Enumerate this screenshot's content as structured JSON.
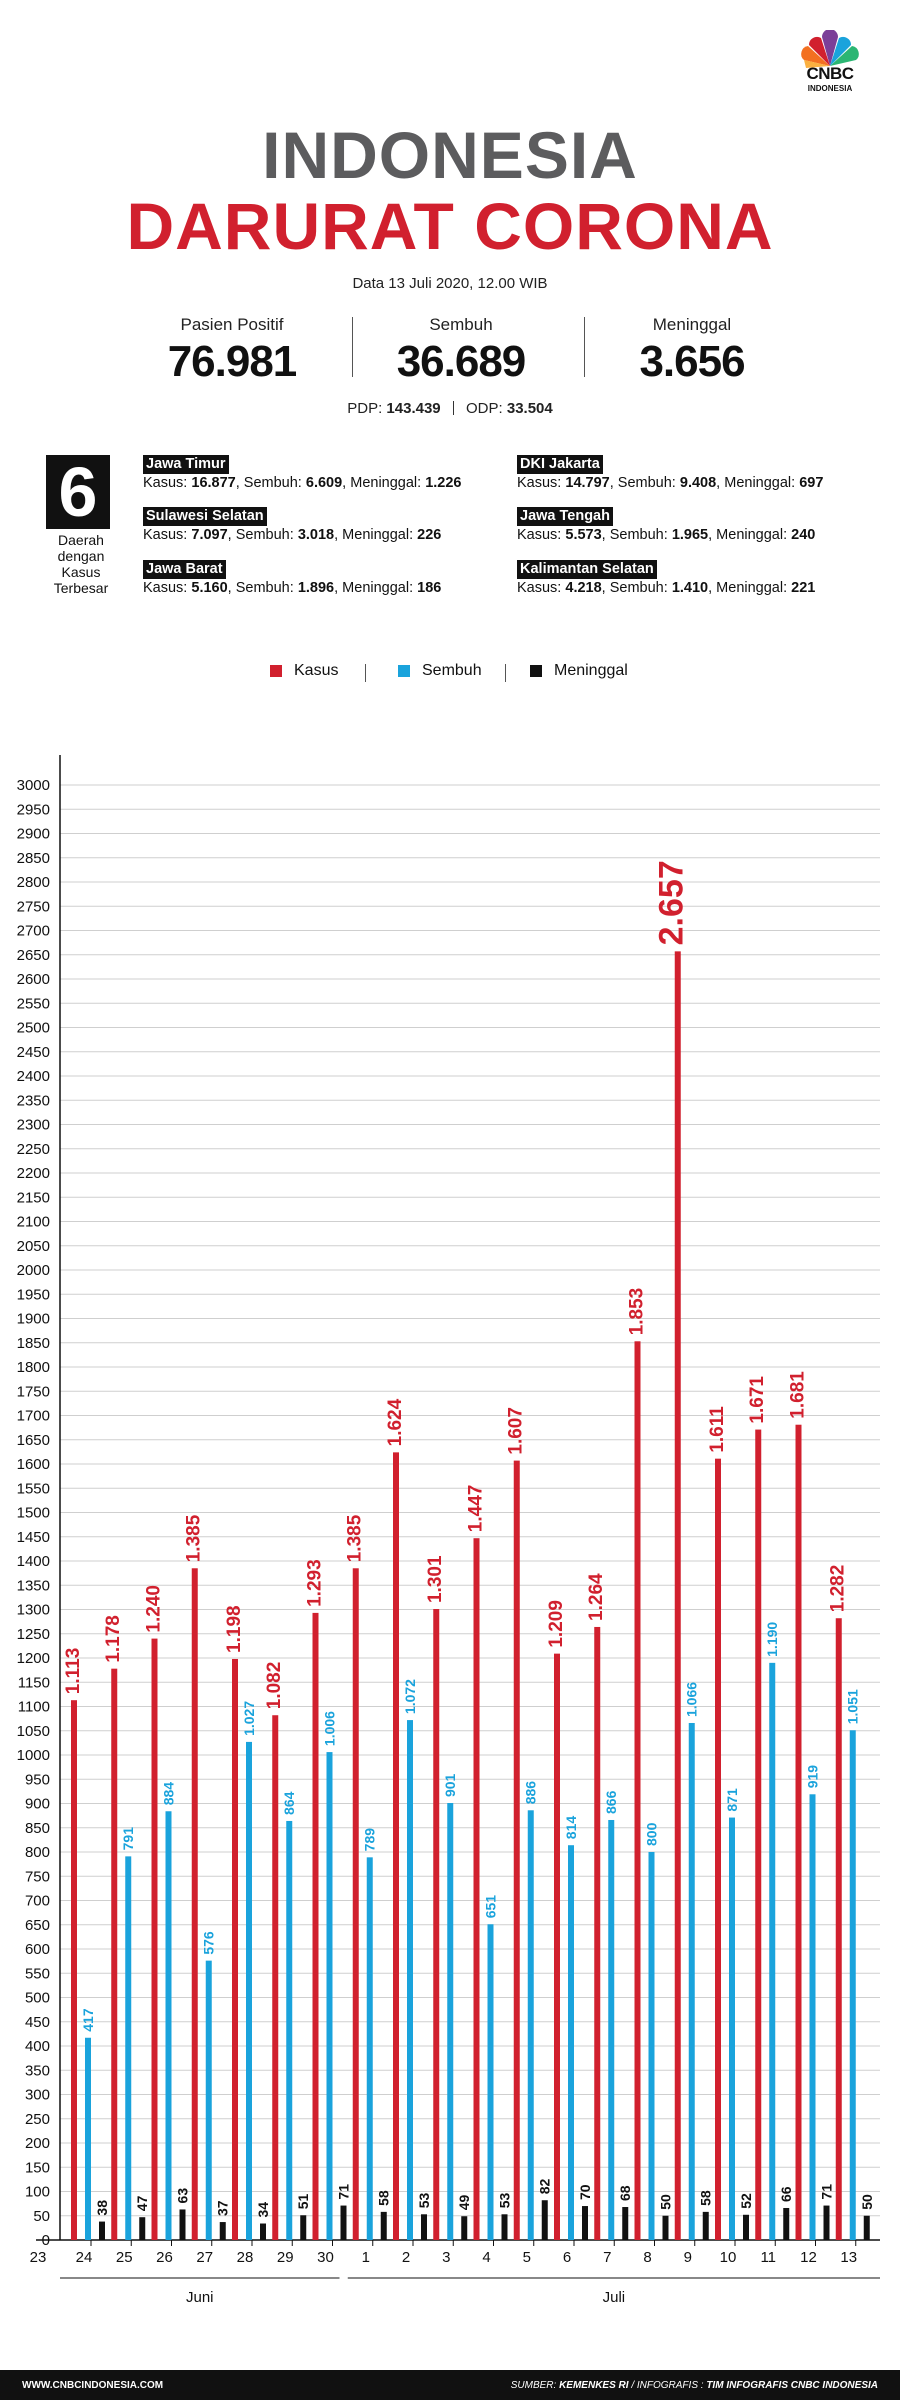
{
  "logo": {
    "brand": "CNBC",
    "sub": "INDONESIA"
  },
  "title": {
    "line1": "INDONESIA",
    "line2": "DARURAT CORONA"
  },
  "date": "Data 13 Juli 2020, 12.00 WIB",
  "stats": [
    {
      "label": "Pasien Positif",
      "value": "76.981"
    },
    {
      "label": "Sembuh",
      "value": "36.689"
    },
    {
      "label": "Meninggal",
      "value": "3.656"
    }
  ],
  "pdp": {
    "pdp_label": "PDP:",
    "pdp_value": "143.439",
    "odp_label": "ODP:",
    "odp_value": "33.504"
  },
  "regions_header": {
    "count": "6",
    "caption_lines": [
      "Daerah",
      "dengan",
      "Kasus",
      "Terbesar"
    ]
  },
  "regions": [
    {
      "name": "Jawa Timur",
      "kasus": "16.877",
      "sembuh": "6.609",
      "meninggal": "1.226"
    },
    {
      "name": "Sulawesi Selatan",
      "kasus": "7.097",
      "sembuh": "3.018",
      "meninggal": "226"
    },
    {
      "name": "Jawa Barat",
      "kasus": "5.160",
      "sembuh": "1.896",
      "meninggal": "186"
    },
    {
      "name": "DKI Jakarta",
      "kasus": "14.797",
      "sembuh": "9.408",
      "meninggal": "697"
    },
    {
      "name": "Jawa Tengah",
      "kasus": "5.573",
      "sembuh": "1.965",
      "meninggal": "240"
    },
    {
      "name": "Kalimantan Selatan",
      "kasus": "4.218",
      "sembuh": "1.410",
      "meninggal": "221"
    }
  ],
  "region_labels": {
    "kasus": "Kasus:",
    "sembuh": "Sembuh:",
    "meninggal": "Meninggal:"
  },
  "legend": [
    "Kasus",
    "Sembuh",
    "Meninggal"
  ],
  "colors": {
    "kasus": "#d1202e",
    "sembuh": "#1aa3dc",
    "meninggal": "#111111",
    "title_gray": "#5c5c5e"
  },
  "chart_data": {
    "type": "bar",
    "categories": [
      "24",
      "25",
      "26",
      "27",
      "28",
      "29",
      "30",
      "1",
      "2",
      "3",
      "4",
      "5",
      "6",
      "7",
      "8",
      "9",
      "10",
      "11",
      "12",
      "13"
    ],
    "first_tick": "23",
    "month_labels": [
      "Juni",
      "Juli"
    ],
    "series": [
      {
        "name": "Kasus",
        "values": [
          1113,
          1178,
          1240,
          1385,
          1198,
          1082,
          1293,
          1385,
          1624,
          1301,
          1447,
          1607,
          1209,
          1264,
          1853,
          2657,
          1611,
          1671,
          1681,
          1282
        ],
        "labels": [
          "1.113",
          "1.178",
          "1.240",
          "1.385",
          "1.198",
          "1.082",
          "1.293",
          "1.385",
          "1.624",
          "1.301",
          "1.447",
          "1.607",
          "1.209",
          "1.264",
          "1.853",
          "2.657",
          "1.611",
          "1.671",
          "1.681",
          "1.282"
        ]
      },
      {
        "name": "Sembuh",
        "values": [
          417,
          791,
          884,
          576,
          1027,
          864,
          1006,
          789,
          1072,
          901,
          651,
          886,
          814,
          866,
          800,
          1066,
          871,
          1190,
          919,
          1051
        ],
        "labels": [
          "417",
          "791",
          "884",
          "576",
          "1.027",
          "864",
          "1.006",
          "789",
          "1.072",
          "901",
          "651",
          "886",
          "814",
          "866",
          "800",
          "1.066",
          "871",
          "1.190",
          "919",
          "1.051"
        ]
      },
      {
        "name": "Meninggal",
        "values": [
          38,
          47,
          63,
          37,
          34,
          51,
          71,
          58,
          53,
          49,
          53,
          82,
          70,
          68,
          50,
          58,
          52,
          66,
          71,
          50
        ],
        "labels": [
          "38",
          "47",
          "63",
          "37",
          "34",
          "51",
          "71",
          "58",
          "53",
          "49",
          "53",
          "82",
          "70",
          "68",
          "50",
          "58",
          "52",
          "66",
          "71",
          "50"
        ]
      }
    ],
    "ylim": [
      0,
      3000
    ],
    "yticks": [
      "3000",
      "2950",
      "2900",
      "2850",
      "2800",
      "2750",
      "2700",
      "2650",
      "2600",
      "2550",
      "2500",
      "2450",
      "2400",
      "2350",
      "2300",
      "2250",
      "2200",
      "2150",
      "2100",
      "2050",
      "2000",
      "1950",
      "1900",
      "1850",
      "1800",
      "1750",
      "1700",
      "1650",
      "1600",
      "1550",
      "1500",
      "1450",
      "1400",
      "1350",
      "1300",
      "1250",
      "1200",
      "1150",
      "1100",
      "1050",
      "1000",
      "950",
      "900",
      "850",
      "800",
      "750",
      "700",
      "650",
      "600",
      "550",
      "500",
      "450",
      "400",
      "350",
      "300",
      "250",
      "200",
      "150",
      "100",
      "50",
      "0"
    ],
    "grid": true
  },
  "footer": {
    "left": "WWW.CNBCINDONESIA.COM",
    "source_label": "SUMBER:",
    "source": "KEMENKES RI",
    "infographic_label": "/ INFOGRAFIS :",
    "infographic": "TIM INFOGRAFIS CNBC INDONESIA"
  }
}
